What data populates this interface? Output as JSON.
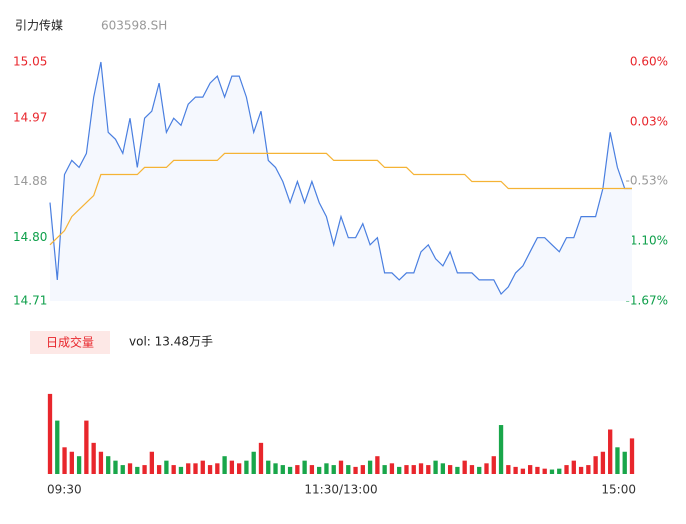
{
  "header": {
    "title": "引力传媒",
    "code": "603598.SH"
  },
  "chart_data": [
    {
      "type": "line",
      "xlim": [
        0,
        240
      ],
      "xticks": [
        {
          "value": 0,
          "label": "09:30"
        },
        {
          "value": 120,
          "label": "11:30/13:00"
        },
        {
          "value": 240,
          "label": "15:00"
        }
      ],
      "ylim": [
        14.71,
        15.05
      ],
      "yticks": [
        15.05,
        14.97,
        14.88,
        {
          "value": 14.8,
          "label": "14.80"
        },
        14.71
      ],
      "ytick_colors": [
        "#e8262c",
        "#e8262c",
        "#999999",
        "#0e9f4a",
        "#0e9f4a"
      ],
      "y2lim": [
        -1.67,
        0.6
      ],
      "y2ticks": [
        {
          "value": 0.6,
          "label": "0.60%"
        },
        {
          "value": 0.03,
          "label": "0.03%"
        },
        {
          "value": -0.53,
          "label": "-0.53%"
        },
        {
          "value": -1.1,
          "label": "-1.10%"
        },
        {
          "value": -1.67,
          "label": "-1.67%"
        }
      ],
      "x": [
        0,
        3,
        6,
        9,
        12,
        15,
        18,
        21,
        24,
        27,
        30,
        33,
        36,
        39,
        42,
        45,
        48,
        51,
        54,
        57,
        60,
        63,
        66,
        69,
        72,
        75,
        78,
        81,
        84,
        87,
        90,
        93,
        96,
        99,
        102,
        105,
        108,
        111,
        114,
        117,
        120,
        123,
        126,
        129,
        132,
        135,
        138,
        141,
        144,
        147,
        150,
        153,
        156,
        159,
        162,
        165,
        168,
        171,
        174,
        177,
        180,
        183,
        186,
        189,
        192,
        195,
        198,
        201,
        204,
        207,
        210,
        213,
        216,
        219,
        222,
        225,
        228,
        231,
        234,
        237,
        240
      ],
      "series": [
        {
          "color": "#4a7fe0",
          "values": [
            14.85,
            14.74,
            14.89,
            14.91,
            14.9,
            14.92,
            15.0,
            15.05,
            14.95,
            14.94,
            14.92,
            14.97,
            14.9,
            14.97,
            14.98,
            15.02,
            14.95,
            14.97,
            14.96,
            14.99,
            15.0,
            15.0,
            15.02,
            15.03,
            15.0,
            15.03,
            15.03,
            15.0,
            14.95,
            14.98,
            14.91,
            14.9,
            14.88,
            14.85,
            14.88,
            14.85,
            14.88,
            14.85,
            14.83,
            14.79,
            14.83,
            14.8,
            14.8,
            14.82,
            14.79,
            14.8,
            14.75,
            14.75,
            14.74,
            14.75,
            14.75,
            14.78,
            14.79,
            14.77,
            14.76,
            14.78,
            14.75,
            14.75,
            14.75,
            14.74,
            14.74,
            14.74,
            14.72,
            14.73,
            14.75,
            14.76,
            14.78,
            14.8,
            14.8,
            14.79,
            14.78,
            14.8,
            14.8,
            14.83,
            14.83,
            14.83,
            14.87,
            14.95,
            14.9,
            14.87,
            14.87
          ]
        },
        {
          "color": "#f5b335",
          "values": [
            14.79,
            14.8,
            14.81,
            14.83,
            14.84,
            14.85,
            14.86,
            14.89,
            14.89,
            14.89,
            14.89,
            14.89,
            14.89,
            14.9,
            14.9,
            14.9,
            14.9,
            14.91,
            14.91,
            14.91,
            14.91,
            14.91,
            14.91,
            14.91,
            14.92,
            14.92,
            14.92,
            14.92,
            14.92,
            14.92,
            14.92,
            14.92,
            14.92,
            14.92,
            14.92,
            14.92,
            14.92,
            14.92,
            14.92,
            14.91,
            14.91,
            14.91,
            14.91,
            14.91,
            14.91,
            14.91,
            14.9,
            14.9,
            14.9,
            14.9,
            14.89,
            14.89,
            14.89,
            14.89,
            14.89,
            14.89,
            14.89,
            14.89,
            14.88,
            14.88,
            14.88,
            14.88,
            14.88,
            14.87,
            14.87,
            14.87,
            14.87,
            14.87,
            14.87,
            14.87,
            14.87,
            14.87,
            14.87,
            14.87,
            14.87,
            14.87,
            14.87,
            14.87,
            14.87,
            14.87,
            14.87
          ]
        }
      ]
    },
    {
      "type": "bar",
      "title": "日成交量",
      "subtitle": "vol: 13.48万手",
      "xlim": [
        0,
        240
      ],
      "ylim": [
        0,
        100
      ],
      "up_color": "#e8262c",
      "down_color": "#19a64a",
      "x": [
        0,
        3,
        6,
        9,
        12,
        15,
        18,
        21,
        24,
        27,
        30,
        33,
        36,
        39,
        42,
        45,
        48,
        51,
        54,
        57,
        60,
        63,
        66,
        69,
        72,
        75,
        78,
        81,
        84,
        87,
        90,
        93,
        96,
        99,
        102,
        105,
        108,
        111,
        114,
        117,
        120,
        123,
        126,
        129,
        132,
        135,
        138,
        141,
        144,
        147,
        150,
        153,
        156,
        159,
        162,
        165,
        168,
        171,
        174,
        177,
        180,
        183,
        186,
        189,
        192,
        195,
        198,
        201,
        204,
        207,
        210,
        213,
        216,
        219,
        222,
        225,
        228,
        231,
        234,
        237,
        240
      ],
      "values": [
        90,
        60,
        30,
        25,
        20,
        60,
        35,
        25,
        20,
        15,
        10,
        12,
        8,
        10,
        25,
        10,
        15,
        10,
        8,
        12,
        12,
        15,
        10,
        12,
        20,
        15,
        12,
        15,
        25,
        35,
        15,
        12,
        10,
        8,
        10,
        15,
        10,
        8,
        12,
        10,
        15,
        10,
        8,
        10,
        15,
        20,
        10,
        12,
        8,
        10,
        10,
        12,
        10,
        15,
        12,
        10,
        8,
        15,
        10,
        8,
        12,
        20,
        55,
        10,
        8,
        6,
        10,
        8,
        6,
        5,
        6,
        10,
        15,
        8,
        10,
        20,
        25,
        50,
        30,
        25,
        40
      ]
    }
  ]
}
